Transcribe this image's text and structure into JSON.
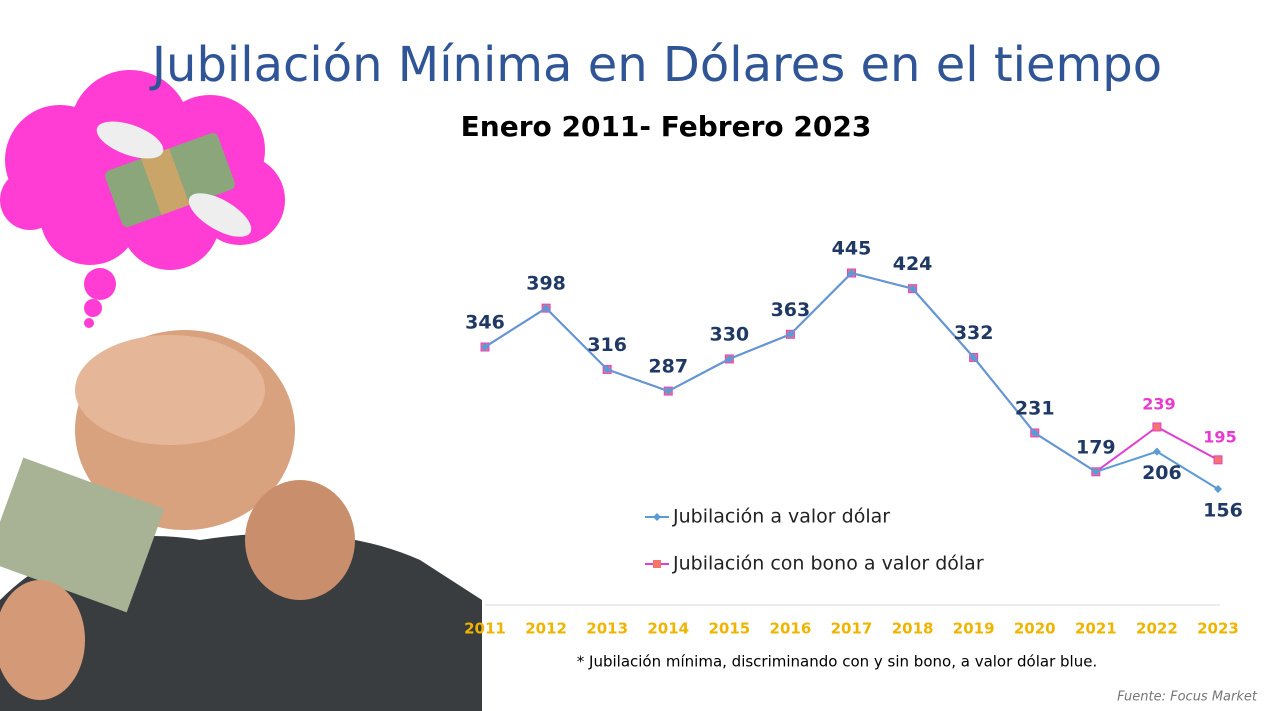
{
  "chart_data": {
    "type": "line",
    "title": "Jubilación Mínima en Dólares en el tiempo",
    "subtitle": "Enero 2011- Febrero 2023",
    "categories": [
      "2011",
      "2012",
      "2013",
      "2014",
      "2015",
      "2016",
      "2017",
      "2018",
      "2019",
      "2020",
      "2021",
      "2022",
      "2023"
    ],
    "series": [
      {
        "name": "Jubilación a valor dólar",
        "color": "#5b9bd5",
        "label_color": "#1f3864",
        "values": [
          346,
          398,
          316,
          287,
          330,
          363,
          445,
          424,
          332,
          231,
          179,
          206,
          156
        ]
      },
      {
        "name": "Jubilación con bono a valor dólar",
        "color": "#e040d0",
        "marker_color": "#f4736a",
        "label_color": "#e83ad0",
        "values": [
          346,
          398,
          316,
          287,
          330,
          363,
          445,
          424,
          332,
          231,
          179,
          239,
          195
        ]
      }
    ],
    "footnote": "* Jubilación mínima, discriminando con y sin bono, a valor dólar blue.",
    "source": "Fuente: Focus Market"
  }
}
